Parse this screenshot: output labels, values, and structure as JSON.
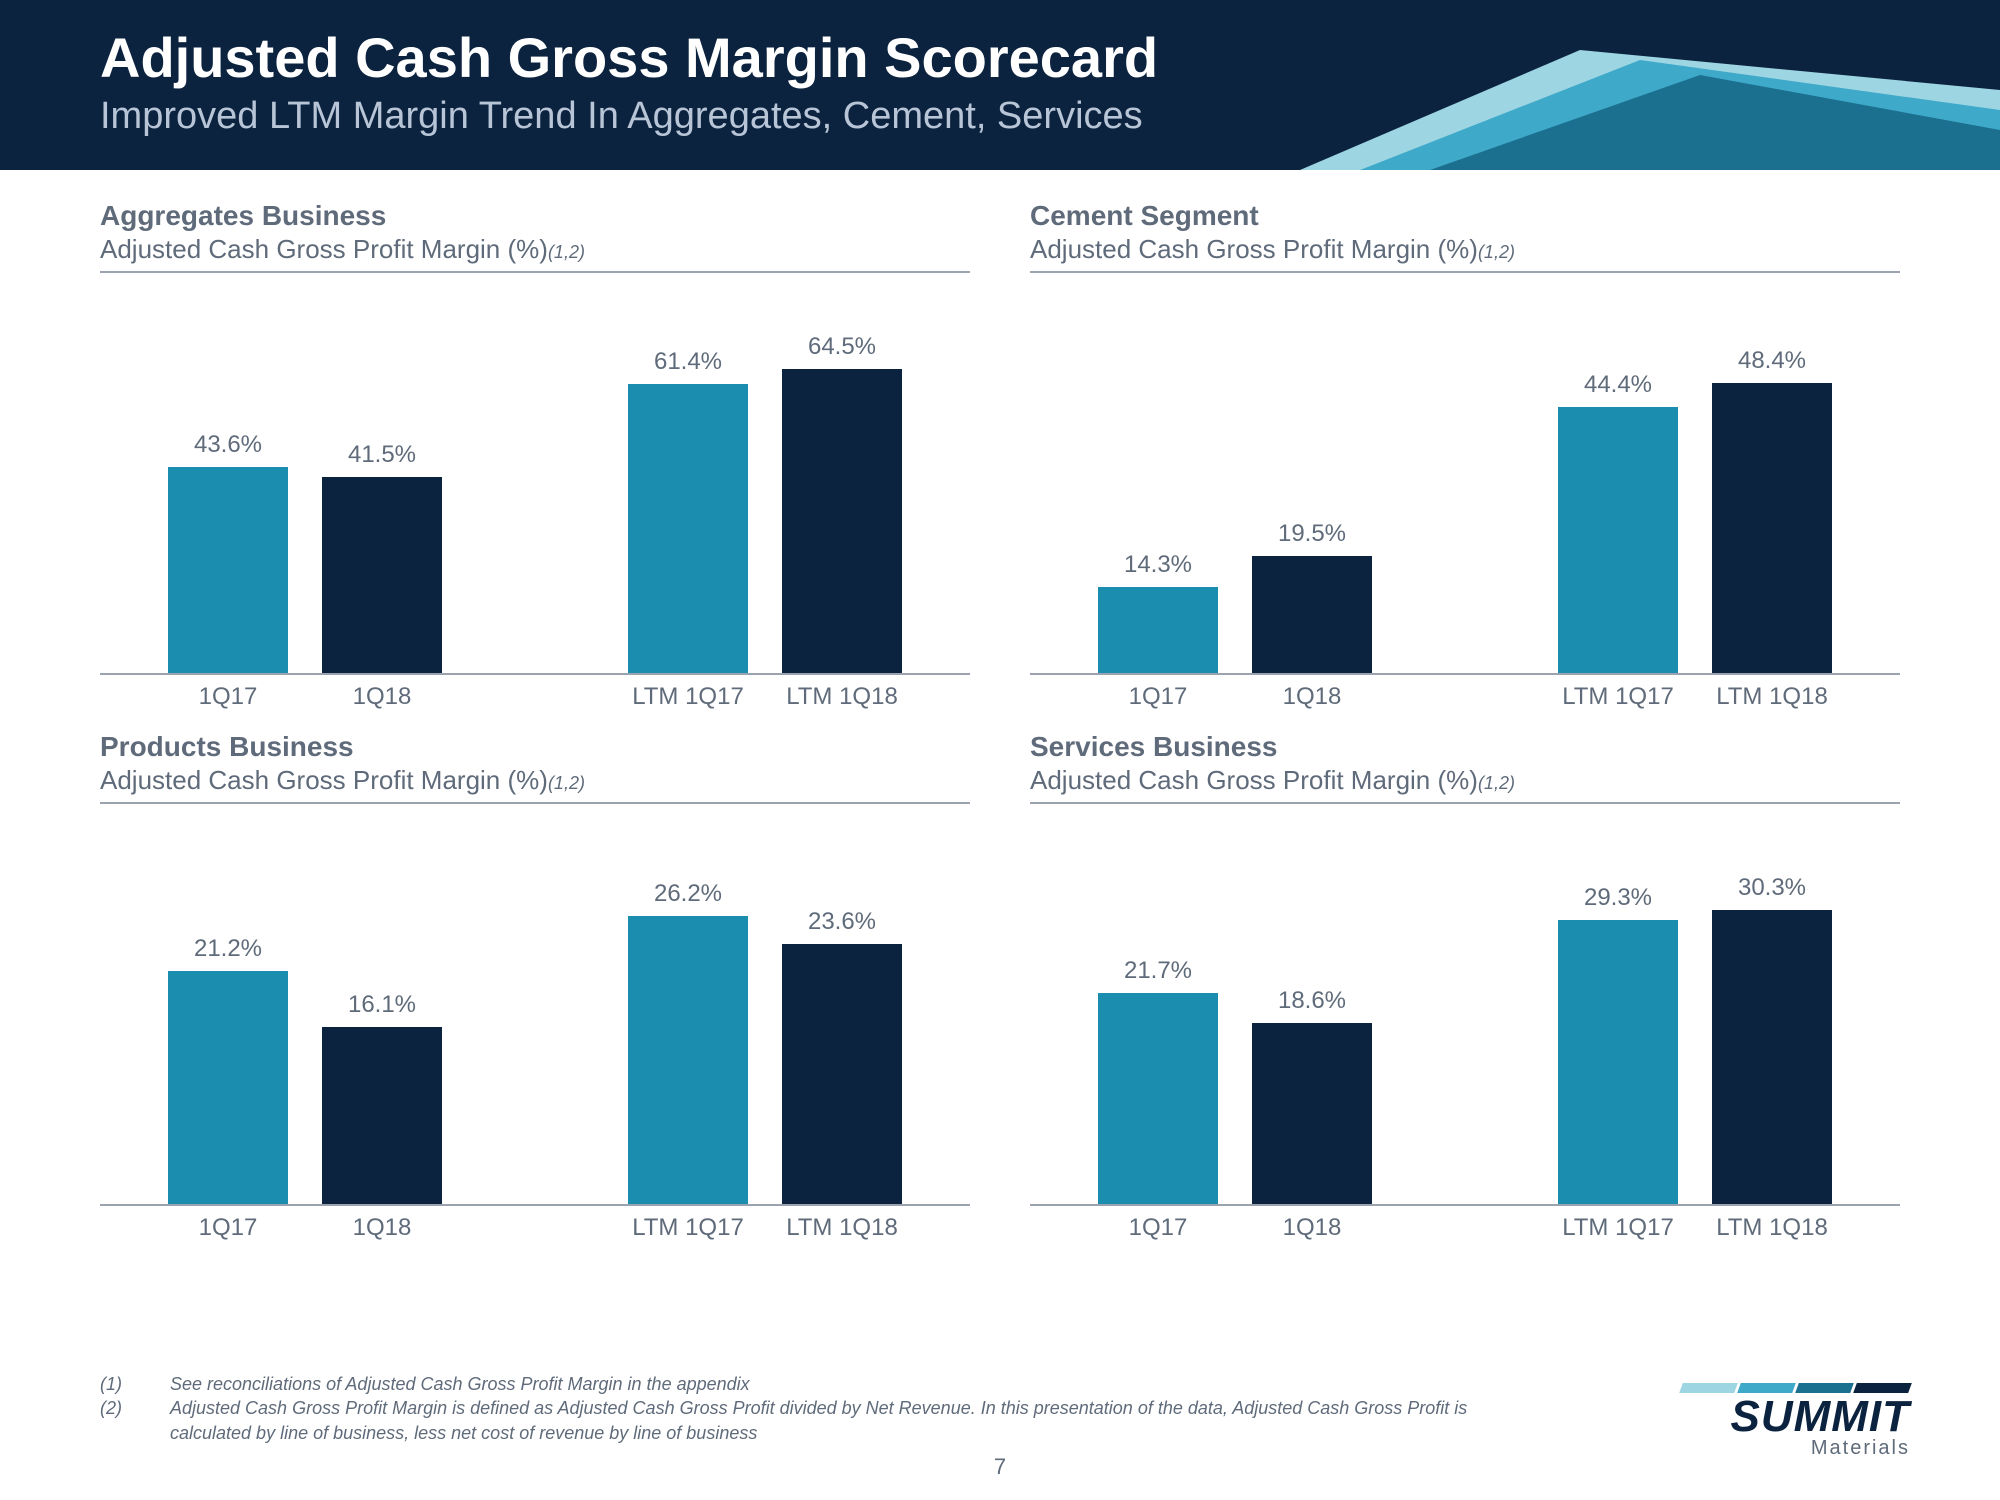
{
  "header": {
    "title": "Adjusted Cash Gross Margin Scorecard",
    "subtitle": "Improved LTM Margin Trend In Aggregates, Cement, Services",
    "bg_color": "#0c2340",
    "swoosh_colors": [
      "#0c2340",
      "#1b6f8f",
      "#3fa9c9",
      "#9dd5e3"
    ]
  },
  "colors": {
    "bar_blue": "#1b8eb0",
    "bar_navy": "#0c2340",
    "text_gray": "#5f6b7a",
    "rule_gray": "#9aa3af"
  },
  "charts": [
    {
      "title": "Aggregates Business",
      "subtitle": "Adjusted Cash Gross Profit Margin (%)",
      "footnote_ref": "(1,2)",
      "ymax": 70,
      "groups": [
        {
          "bars": [
            {
              "label": "43.6%",
              "value": 43.6,
              "color_key": "bar_blue",
              "x": "1Q17"
            },
            {
              "label": "41.5%",
              "value": 41.5,
              "color_key": "bar_navy",
              "x": "1Q18"
            }
          ]
        },
        {
          "bars": [
            {
              "label": "61.4%",
              "value": 61.4,
              "color_key": "bar_blue",
              "x": "LTM 1Q17"
            },
            {
              "label": "64.5%",
              "value": 64.5,
              "color_key": "bar_navy",
              "x": "LTM 1Q18"
            }
          ]
        }
      ]
    },
    {
      "title": "Cement Segment",
      "subtitle": "Adjusted Cash Gross Profit Margin (%)",
      "footnote_ref": "(1,2)",
      "ymax": 55,
      "groups": [
        {
          "bars": [
            {
              "label": "14.3%",
              "value": 14.3,
              "color_key": "bar_blue",
              "x": "1Q17"
            },
            {
              "label": "19.5%",
              "value": 19.5,
              "color_key": "bar_navy",
              "x": "1Q18"
            }
          ]
        },
        {
          "bars": [
            {
              "label": "44.4%",
              "value": 44.4,
              "color_key": "bar_blue",
              "x": "LTM 1Q17"
            },
            {
              "label": "48.4%",
              "value": 48.4,
              "color_key": "bar_navy",
              "x": "LTM 1Q18"
            }
          ]
        }
      ]
    },
    {
      "title": "Products Business",
      "subtitle": "Adjusted Cash Gross Profit Margin (%)",
      "footnote_ref": "(1,2)",
      "ymax": 30,
      "groups": [
        {
          "bars": [
            {
              "label": "21.2%",
              "value": 21.2,
              "color_key": "bar_blue",
              "x": "1Q17"
            },
            {
              "label": "16.1%",
              "value": 16.1,
              "color_key": "bar_navy",
              "x": "1Q18"
            }
          ]
        },
        {
          "bars": [
            {
              "label": "26.2%",
              "value": 26.2,
              "color_key": "bar_blue",
              "x": "LTM 1Q17"
            },
            {
              "label": "23.6%",
              "value": 23.6,
              "color_key": "bar_navy",
              "x": "LTM 1Q18"
            }
          ]
        }
      ]
    },
    {
      "title": "Services Business",
      "subtitle": "Adjusted Cash Gross Profit Margin (%)",
      "footnote_ref": "(1,2)",
      "ymax": 34,
      "groups": [
        {
          "bars": [
            {
              "label": "21.7%",
              "value": 21.7,
              "color_key": "bar_blue",
              "x": "1Q17"
            },
            {
              "label": "18.6%",
              "value": 18.6,
              "color_key": "bar_navy",
              "x": "1Q18"
            }
          ]
        },
        {
          "bars": [
            {
              "label": "29.3%",
              "value": 29.3,
              "color_key": "bar_blue",
              "x": "LTM 1Q17"
            },
            {
              "label": "30.3%",
              "value": 30.3,
              "color_key": "bar_navy",
              "x": "LTM 1Q18"
            }
          ]
        }
      ]
    }
  ],
  "footnotes": [
    {
      "num": "(1)",
      "text": "See reconciliations of Adjusted Cash Gross Profit Margin in the appendix"
    },
    {
      "num": "(2)",
      "text": "Adjusted Cash Gross Profit Margin is defined as Adjusted Cash Gross Profit divided by Net Revenue.  In this presentation of the data, Adjusted Cash Gross Profit is calculated by line of business, less net cost of revenue by line of business"
    }
  ],
  "page_number": "7",
  "logo": {
    "main": "SUMMIT",
    "sub": "Materials",
    "bar_colors": [
      "#9dd5e3",
      "#3fa9c9",
      "#1b6f8f",
      "#0c2340"
    ]
  }
}
